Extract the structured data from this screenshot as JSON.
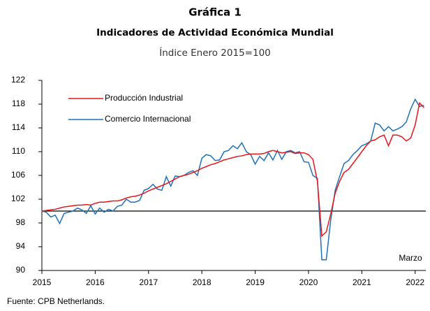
{
  "chart_data": {
    "type": "line",
    "title": "Gráfica 1",
    "subtitle": "Indicadores de Actividad Económica Mundial",
    "subtitle2": "Índice Enero 2015=100",
    "annotation": "Marzo",
    "source": "Fuente: CPB Netherlands.",
    "x": [
      2015,
      2015.083,
      2015.167,
      2015.25,
      2015.333,
      2015.417,
      2015.5,
      2015.583,
      2015.667,
      2015.75,
      2015.833,
      2015.917,
      2016,
      2016.083,
      2016.167,
      2016.25,
      2016.333,
      2016.417,
      2016.5,
      2016.583,
      2016.667,
      2016.75,
      2016.833,
      2016.917,
      2017,
      2017.083,
      2017.167,
      2017.25,
      2017.333,
      2017.417,
      2017.5,
      2017.583,
      2017.667,
      2017.75,
      2017.833,
      2017.917,
      2018,
      2018.083,
      2018.167,
      2018.25,
      2018.333,
      2018.417,
      2018.5,
      2018.583,
      2018.667,
      2018.75,
      2018.833,
      2018.917,
      2019,
      2019.083,
      2019.167,
      2019.25,
      2019.333,
      2019.417,
      2019.5,
      2019.583,
      2019.667,
      2019.75,
      2019.833,
      2019.917,
      2020,
      2020.083,
      2020.167,
      2020.25,
      2020.333,
      2020.417,
      2020.5,
      2020.583,
      2020.667,
      2020.75,
      2020.833,
      2020.917,
      2021,
      2021.083,
      2021.167,
      2021.25,
      2021.333,
      2021.417,
      2021.5,
      2021.583,
      2021.667,
      2021.75,
      2021.833,
      2021.917,
      2022,
      2022.083,
      2022.167
    ],
    "series": [
      {
        "name": "Producción Industrial",
        "color": "#e8151b",
        "values": [
          100,
          100.1,
          100.2,
          100.3,
          100.5,
          100.7,
          100.8,
          100.9,
          101.0,
          101.0,
          101.1,
          101.0,
          101.3,
          101.5,
          101.5,
          101.6,
          101.7,
          101.7,
          101.9,
          102.2,
          102.4,
          102.5,
          102.7,
          103.0,
          103.4,
          103.7,
          104.0,
          104.3,
          104.6,
          105.0,
          105.4,
          105.8,
          106.0,
          106.2,
          106.5,
          106.8,
          107.2,
          107.5,
          107.8,
          108.0,
          108.3,
          108.6,
          108.8,
          109.0,
          109.2,
          109.3,
          109.5,
          109.6,
          109.6,
          109.6,
          109.7,
          110.0,
          110.2,
          110.0,
          109.8,
          109.9,
          110.0,
          109.7,
          109.8,
          109.8,
          109.5,
          108.7,
          105.0,
          95.8,
          96.5,
          99.5,
          103.0,
          105.0,
          106.5,
          107.0,
          108.0,
          109.0,
          110.0,
          111.0,
          111.8,
          112.0,
          112.5,
          112.8,
          111.0,
          112.8,
          112.8,
          112.5,
          111.8,
          112.3,
          114.5,
          118.2,
          117.4
        ]
      },
      {
        "name": "Comercio Internacional",
        "color": "#1f72b8",
        "values": [
          100,
          99.8,
          99.0,
          99.3,
          97.9,
          99.6,
          99.8,
          100.0,
          100.5,
          100.2,
          99.6,
          100.9,
          99.5,
          100.5,
          99.8,
          100.3,
          100.0,
          100.8,
          101.0,
          102.0,
          101.5,
          101.5,
          101.8,
          103.5,
          103.8,
          104.5,
          103.7,
          103.5,
          105.8,
          104.2,
          105.9,
          105.8,
          106.0,
          106.5,
          106.8,
          106.0,
          108.9,
          109.5,
          109.3,
          108.5,
          108.6,
          110.0,
          110.2,
          111.0,
          110.5,
          111.5,
          110.0,
          109.5,
          107.9,
          109.2,
          108.5,
          109.8,
          108.6,
          110.2,
          108.7,
          110.0,
          110.2,
          109.8,
          110.0,
          108.3,
          108.2,
          106.0,
          105.5,
          91.8,
          91.8,
          98.5,
          103.5,
          105.8,
          108.0,
          108.5,
          109.5,
          110.2,
          111.0,
          111.3,
          111.8,
          114.8,
          114.5,
          113.5,
          114.2,
          113.5,
          113.8,
          114.2,
          115.0,
          117.2,
          118.8,
          117.6,
          117.8
        ]
      }
    ],
    "hline": 100,
    "xlim": [
      2015,
      2022.2
    ],
    "xticks": [
      2015,
      2016,
      2017,
      2018,
      2019,
      2020,
      2021,
      2022
    ],
    "ylim": [
      90,
      122
    ],
    "yticks": [
      90,
      94,
      98,
      102,
      106,
      110,
      114,
      118,
      122
    ],
    "legend": "upper left",
    "grid": false
  }
}
